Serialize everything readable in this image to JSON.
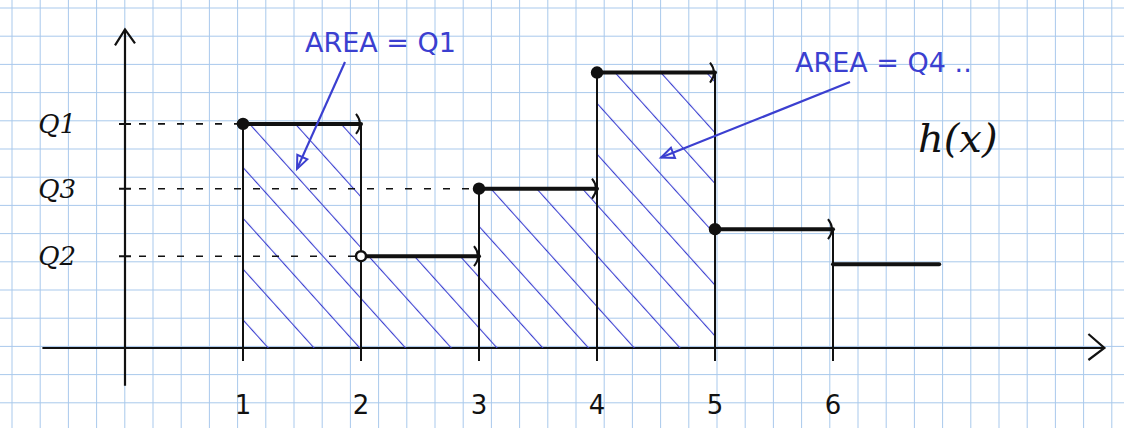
{
  "chart_data": {
    "type": "step",
    "label": "h(x)",
    "bins": [
      1,
      2,
      3,
      4,
      5,
      6,
      6.9
    ],
    "values": [
      8.3,
      3.4,
      5.9,
      10.2,
      4.4,
      3.1
    ],
    "shaded": {
      "from": 1,
      "to": 5
    },
    "annotations": [
      "AREA = Q1",
      "AREA = Q4 .."
    ],
    "xlim": [
      -0.7,
      8.3
    ],
    "ylim": [
      -1.4,
      11.8
    ],
    "xticks": [
      1,
      2,
      3,
      4,
      5,
      6
    ],
    "yticks": [
      {
        "value": 8.3,
        "label": "Q1"
      },
      {
        "value": 5.9,
        "label": "Q3"
      },
      {
        "value": 3.4,
        "label": "Q2"
      }
    ],
    "grid": true
  }
}
